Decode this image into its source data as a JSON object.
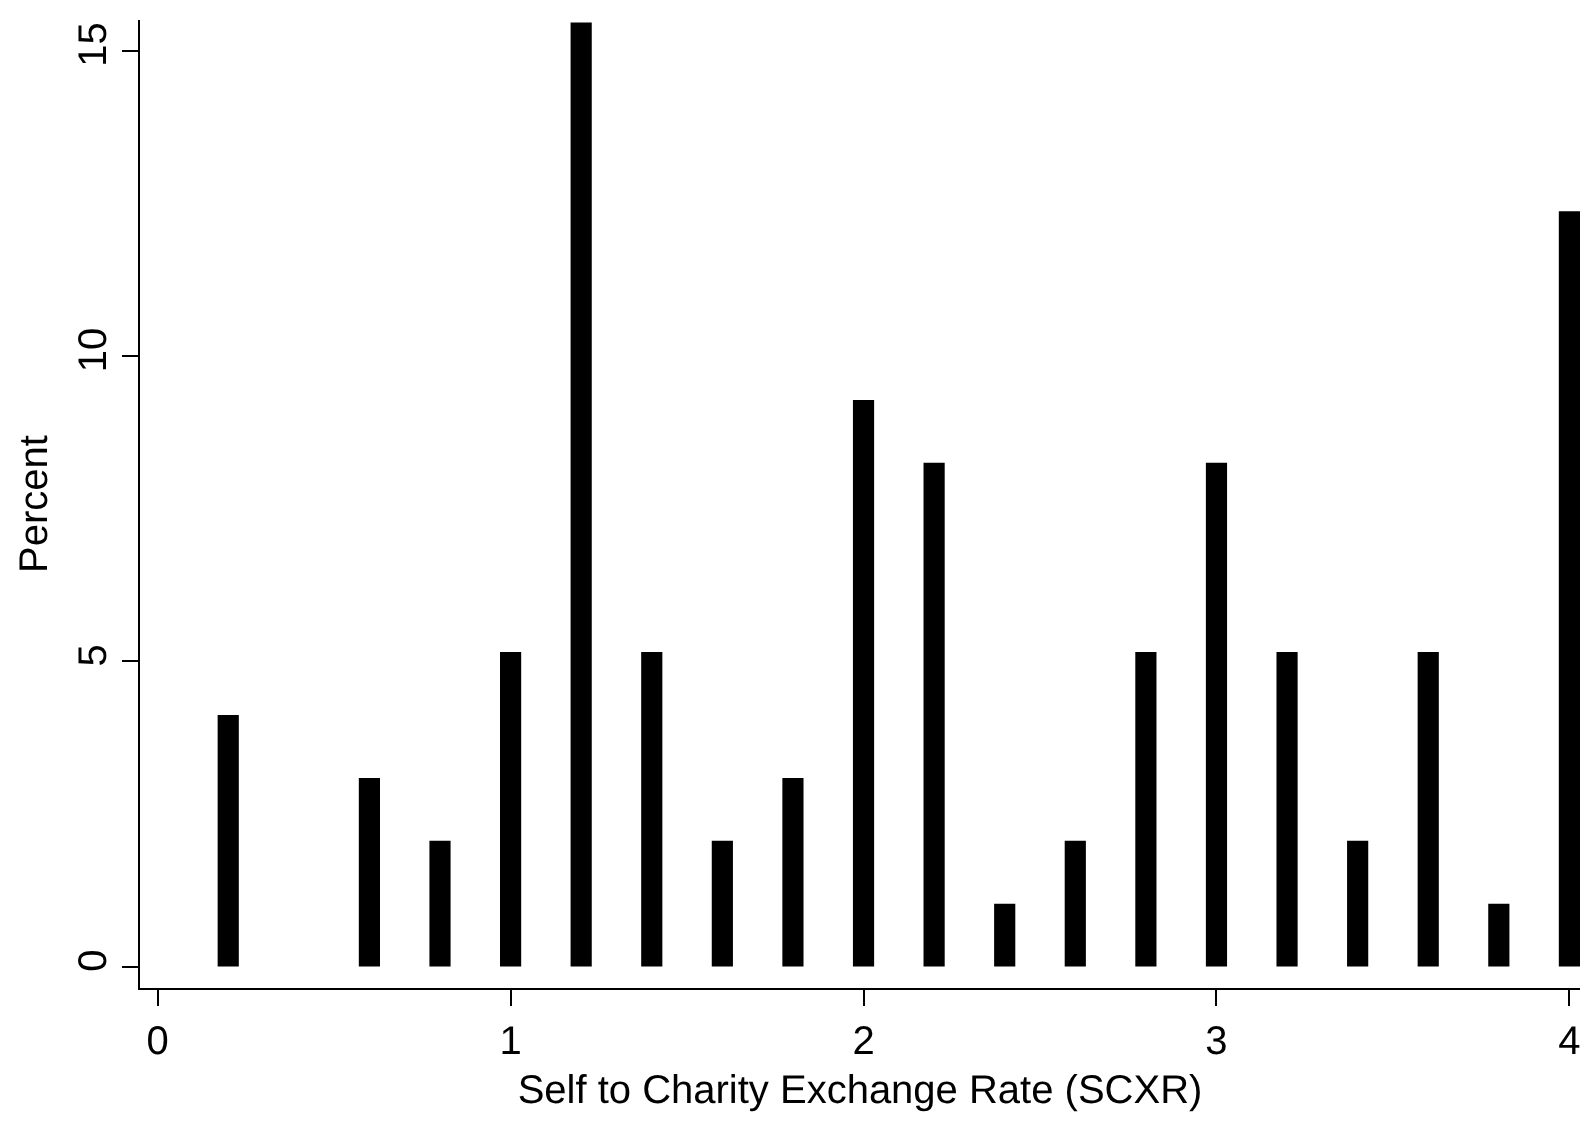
{
  "chart_data": {
    "type": "bar",
    "xlabel": "Self to Charity Exchange Rate (SCXR)",
    "ylabel": "Percent",
    "x": [
      0.2,
      0.6,
      0.8,
      1.0,
      1.2,
      1.4,
      1.6,
      1.8,
      2.0,
      2.2,
      2.4,
      2.6,
      2.8,
      3.0,
      3.2,
      3.4,
      3.6,
      3.8,
      4.0
    ],
    "values": [
      4.12,
      3.09,
      2.06,
      5.15,
      15.46,
      5.15,
      2.06,
      3.09,
      9.28,
      8.25,
      1.03,
      2.06,
      5.15,
      8.25,
      5.15,
      2.06,
      5.15,
      1.03,
      12.37
    ],
    "color": "#000000",
    "xlim": [
      -0.05,
      4.03
    ],
    "xticks": [
      0,
      1,
      2,
      3,
      4
    ],
    "ylim": [
      -0.35,
      15.5
    ],
    "yticks": [
      0,
      5,
      10,
      15
    ]
  }
}
